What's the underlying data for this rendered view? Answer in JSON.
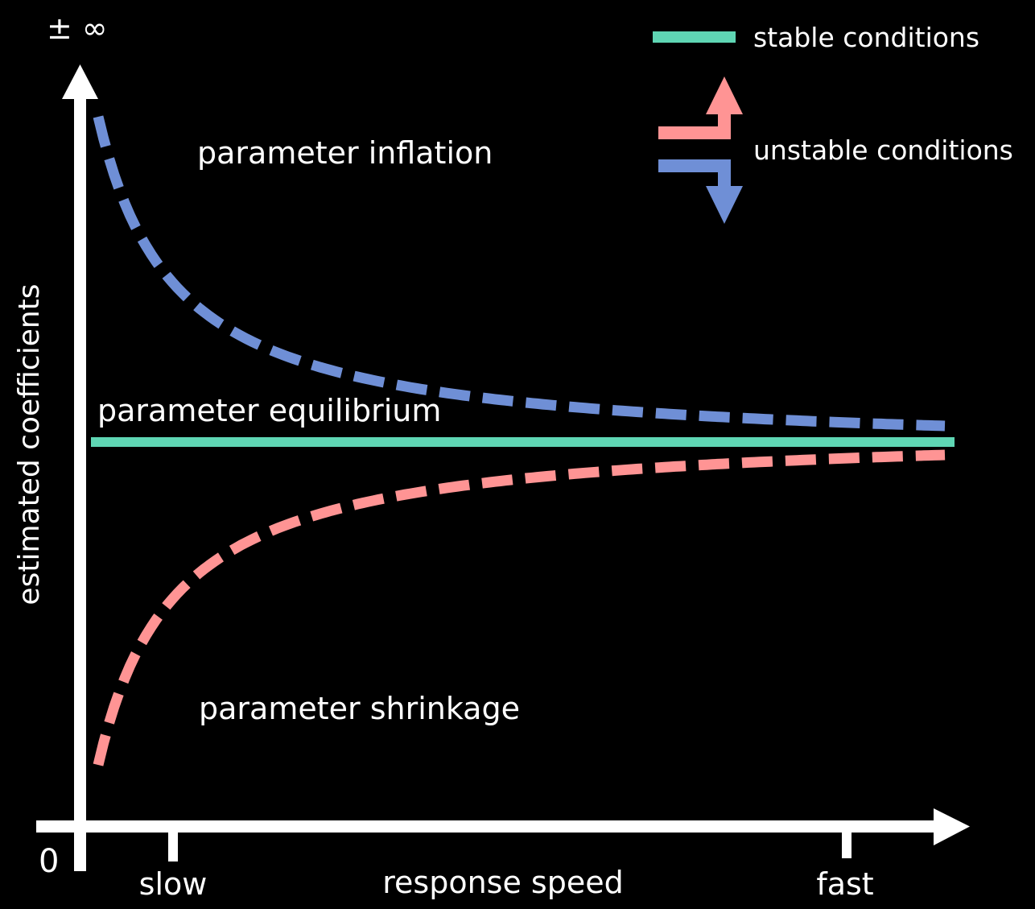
{
  "diagram": {
    "y_axis": {
      "label": "estimated coefficients",
      "top_label": "± ∞",
      "origin_label": "0"
    },
    "x_axis": {
      "label": "response speed",
      "tick_labels": [
        "slow",
        "fast"
      ]
    },
    "regions": {
      "inflation": "parameter inflation",
      "equilibrium": "parameter equilibrium",
      "shrinkage": "parameter shrinkage"
    },
    "legend": {
      "stable": "stable conditions",
      "unstable": "unstable conditions"
    },
    "colors": {
      "background": "#000000",
      "axes": "#ffffff",
      "stable": "#5fd6b4",
      "inflation": "#6f8fd6",
      "shrinkage": "#ff9494"
    }
  }
}
